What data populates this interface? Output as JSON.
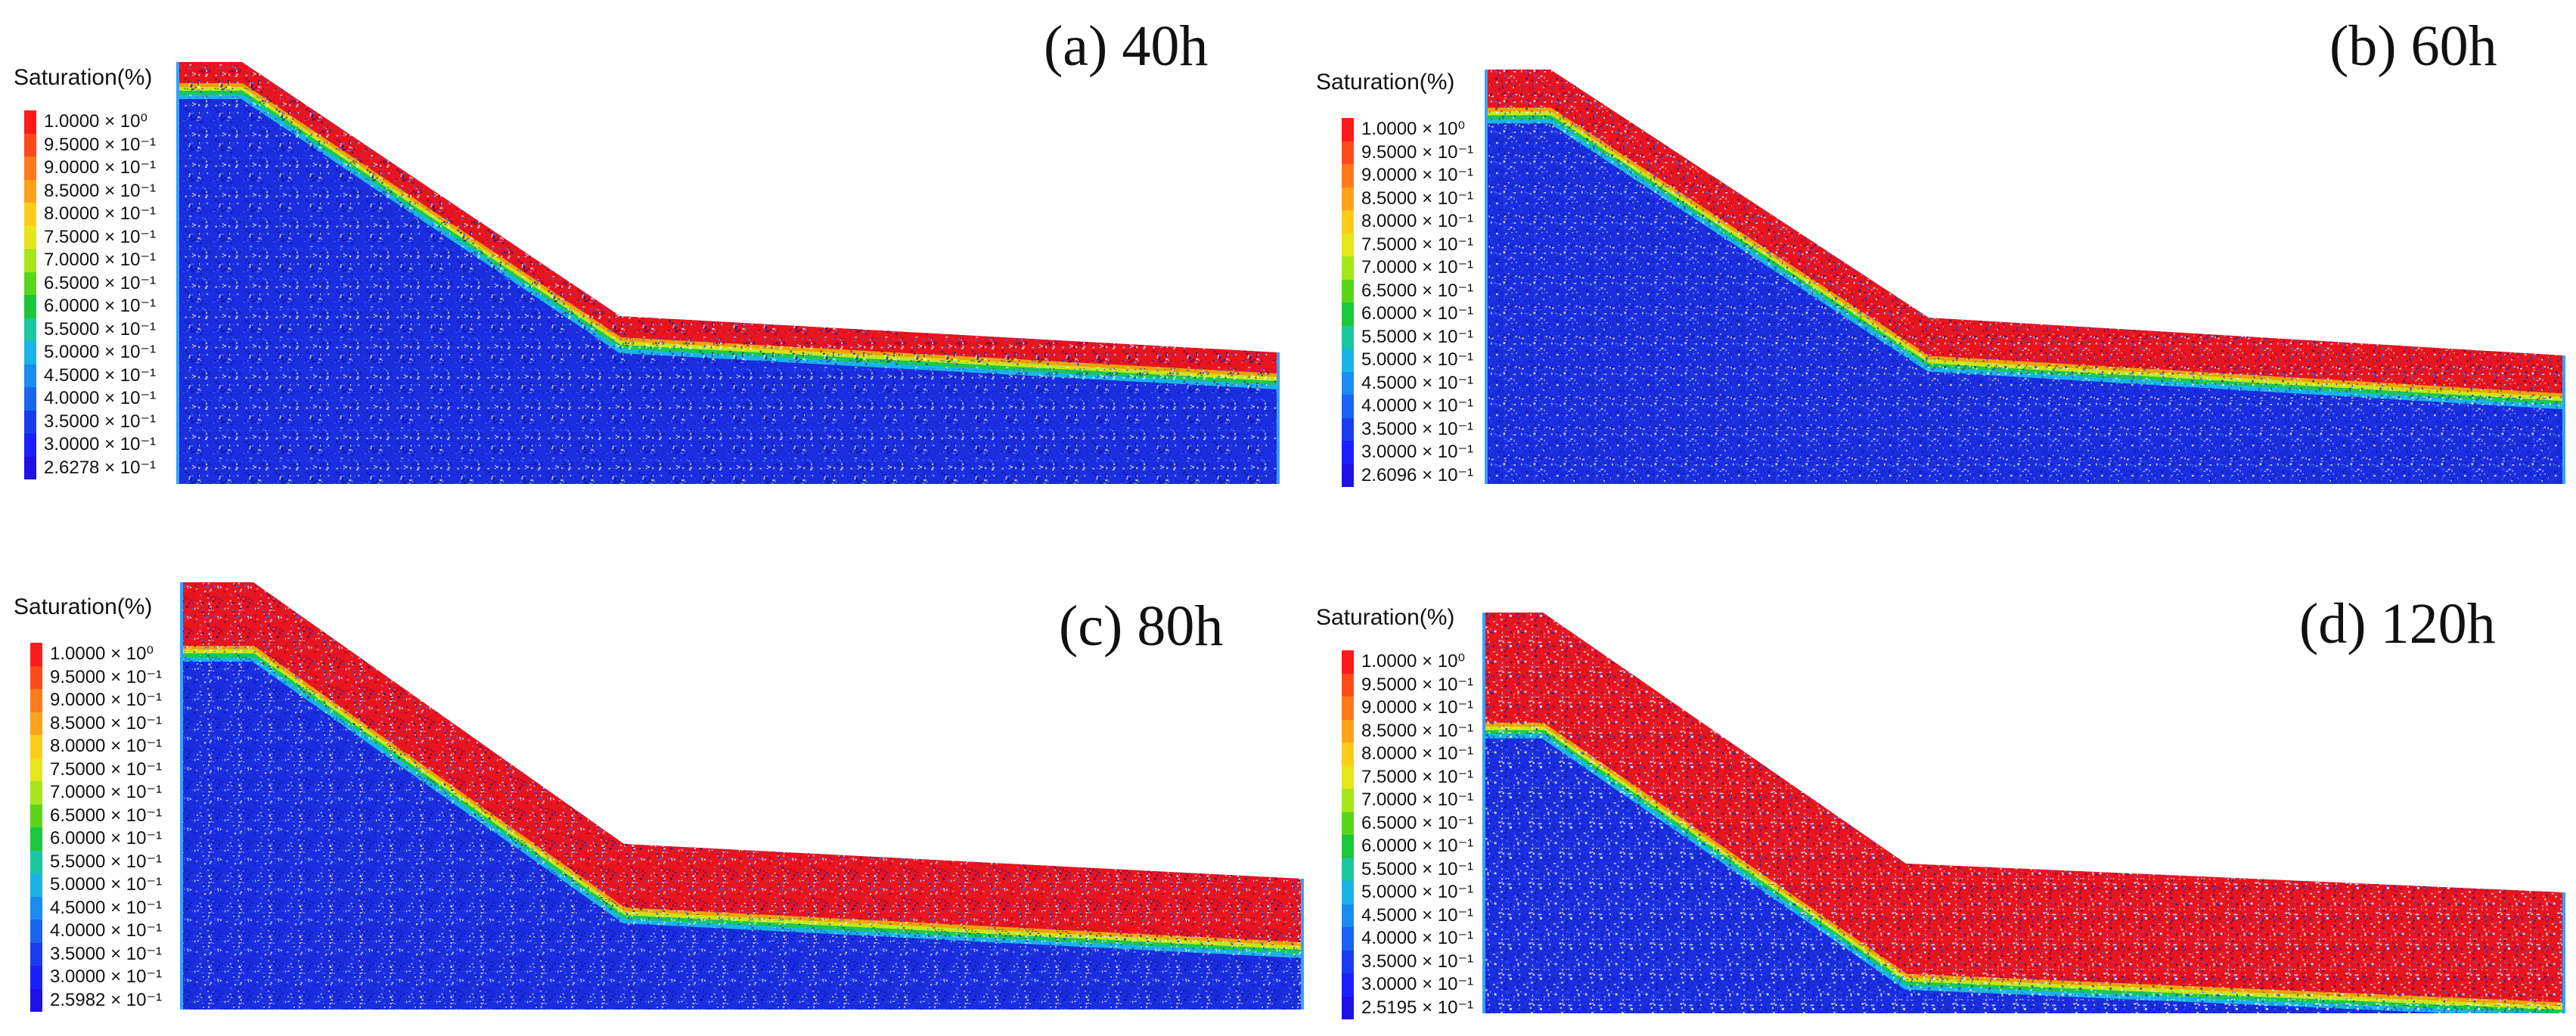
{
  "colorbar": {
    "label": "Saturation(%)",
    "colors": [
      "#ff1a1a",
      "#ff4a1a",
      "#ff7a1a",
      "#ffa21a",
      "#ffcc1a",
      "#e6e61a",
      "#a6e61a",
      "#5ad61a",
      "#1ac83a",
      "#1ac8a0",
      "#1ab4e6",
      "#1a8cf0",
      "#1a64f0",
      "#1a3cf0",
      "#1a20ff",
      "#2010e6"
    ],
    "upper_ticks": [
      "1.0000 × 10⁰",
      "9.5000 × 10⁻¹",
      "9.0000 × 10⁻¹",
      "8.5000 × 10⁻¹",
      "8.0000 × 10⁻¹",
      "7.5000 × 10⁻¹",
      "7.0000 × 10⁻¹",
      "6.5000 × 10⁻¹",
      "6.0000 × 10⁻¹",
      "5.5000 × 10⁻¹",
      "5.0000 × 10⁻¹",
      "4.5000 × 10⁻¹",
      "4.0000 × 10⁻¹",
      "3.5000 × 10⁻¹",
      "3.0000 × 10⁻¹"
    ]
  },
  "panels": [
    {
      "title": "(a) 40h",
      "min_tick": "2.6278 × 10⁻¹",
      "wet_depth": 0.05
    },
    {
      "title": "(b) 60h",
      "min_tick": "2.6096 × 10⁻¹",
      "wet_depth": 0.09
    },
    {
      "title": "(c) 80h",
      "min_tick": "2.5982 × 10⁻¹",
      "wet_depth": 0.15
    },
    {
      "title": "(d) 120h",
      "min_tick": "2.5195 × 10⁻¹",
      "wet_depth": 0.26
    }
  ]
}
